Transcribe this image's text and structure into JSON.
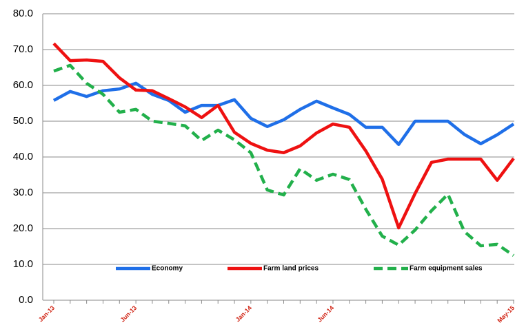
{
  "chart_data": {
    "type": "line",
    "categories": [
      "Jan-13",
      null,
      null,
      null,
      null,
      "Jun-13",
      null,
      null,
      null,
      null,
      null,
      null,
      "Jan-14",
      null,
      null,
      null,
      null,
      "Jun-14",
      null,
      null,
      null,
      null,
      null,
      null,
      null,
      null,
      null,
      null,
      "May-15"
    ],
    "series": [
      {
        "name": "Economy",
        "color": "#1f6fe8",
        "dash": false,
        "values": [
          55.8,
          58.3,
          56.9,
          58.5,
          59,
          60.6,
          57.5,
          55.8,
          52.5,
          54.4,
          54.4,
          56,
          50.8,
          48.5,
          50.4,
          53.3,
          55.6,
          53.7,
          51.9,
          48.3,
          48.3,
          43.5,
          50,
          50,
          50,
          46.3,
          43.7,
          46.2,
          49.2
        ]
      },
      {
        "name": "Farm land prices",
        "color": "#ee1111",
        "dash": false,
        "values": [
          71.7,
          66.9,
          67.1,
          66.7,
          62.1,
          58.7,
          58.5,
          56.3,
          54,
          51,
          54.4,
          46.9,
          43.8,
          41.9,
          41.2,
          43.1,
          46.7,
          49.2,
          48.3,
          41.7,
          33.8,
          20.2,
          29.8,
          38.5,
          39.4,
          39.4,
          39.4,
          33.5,
          39.6
        ]
      },
      {
        "name": "Farm equipment sales",
        "color": "#22b04b",
        "dash": true,
        "values": [
          64,
          65.6,
          60.6,
          57.5,
          52.5,
          53.3,
          50,
          49.4,
          48.7,
          44.6,
          47.5,
          44.8,
          41.2,
          30.8,
          29.4,
          36.7,
          33.5,
          35.2,
          33.7,
          25.4,
          17.9,
          15.4,
          19.6,
          25,
          29.6,
          19.2,
          15.2,
          15.6,
          12.5
        ]
      }
    ],
    "ylim": [
      0,
      80
    ],
    "yticks": [
      {
        "value": 0,
        "label": "0.0"
      },
      {
        "value": 10,
        "label": "10.0"
      },
      {
        "value": 20,
        "label": "20.0"
      },
      {
        "value": 30,
        "label": "30.0"
      },
      {
        "value": 40,
        "label": "40.0"
      },
      {
        "value": 50,
        "label": "50.0"
      },
      {
        "value": 60,
        "label": "60.0"
      },
      {
        "value": 70,
        "label": "70.0"
      },
      {
        "value": 80,
        "label": "80.0"
      }
    ],
    "grid": true,
    "legend": "bottom"
  }
}
